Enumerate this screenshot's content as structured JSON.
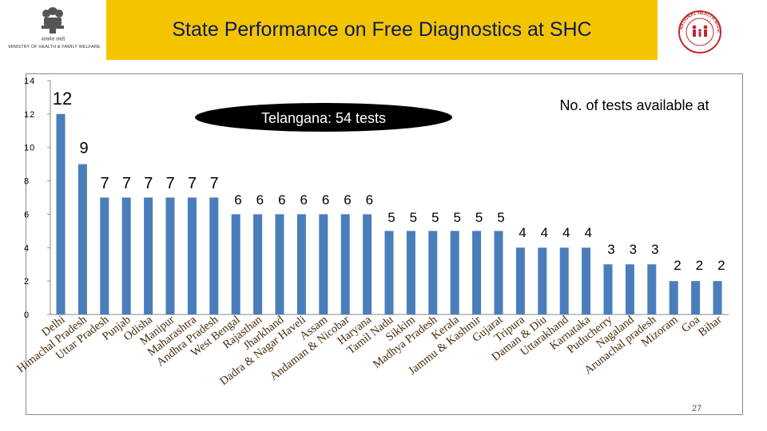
{
  "header": {
    "title": "State Performance on Free Diagnostics at SHC",
    "ministry_caption": "MINISTRY OF HEALTH & FAMILY WELFARE",
    "emblem_caption_hindi": "सत्यमेव जयते",
    "nhm_logo_text": "NATIONAL HEALTH MISSION",
    "band_color": "#f5c400",
    "title_color": "#0a1a5c"
  },
  "chart_data": {
    "type": "bar",
    "categories": [
      "Delhi",
      "Himachal Pradesh",
      "Uttar Pradesh",
      "Punjab",
      "Odisha",
      "Manipur",
      "Maharashtra",
      "Andhra Pradesh",
      "West Bengal",
      "Rajasthan",
      "Jharkhand",
      "Dadra & Nagar Haveli",
      "Assam",
      "Andaman & Nicobar",
      "Haryana",
      "Tamil Nadu",
      "Sikkim",
      "Madhya Pradesh",
      "Kerala",
      "Jammu & Kashmir",
      "Gujarat",
      "Tripura",
      "Daman & Diu",
      "Uttarakhand",
      "Karnataka",
      "Puducherry",
      "Nagaland",
      "Arunachal pradesh",
      "Mizoram",
      "Goa",
      "Bihar"
    ],
    "values": [
      12,
      9,
      7,
      7,
      7,
      7,
      7,
      7,
      6,
      6,
      6,
      6,
      6,
      6,
      6,
      5,
      5,
      5,
      5,
      5,
      5,
      4,
      4,
      4,
      4,
      3,
      3,
      3,
      2,
      2,
      2
    ],
    "value_labels": [
      "12",
      "9",
      "7",
      "7",
      "7",
      "7",
      "7",
      "7",
      "6",
      "6",
      "6",
      "6",
      "6",
      "6",
      "6",
      "5",
      "5",
      "5",
      "5",
      "5",
      "5",
      "4",
      "4",
      "4",
      "4",
      "3",
      "3",
      "3",
      "2",
      "2",
      "2"
    ],
    "yticks": [
      "0",
      "2",
      "4",
      "6",
      "8",
      "10",
      "12",
      "14"
    ],
    "ylim": [
      0,
      14
    ],
    "bar_color": "#4a7ebb",
    "annotation_callout": "Telangana: 54 tests",
    "annotation_heading": "No. of tests available at",
    "grid": false
  },
  "footer": {
    "page_number": "27"
  }
}
